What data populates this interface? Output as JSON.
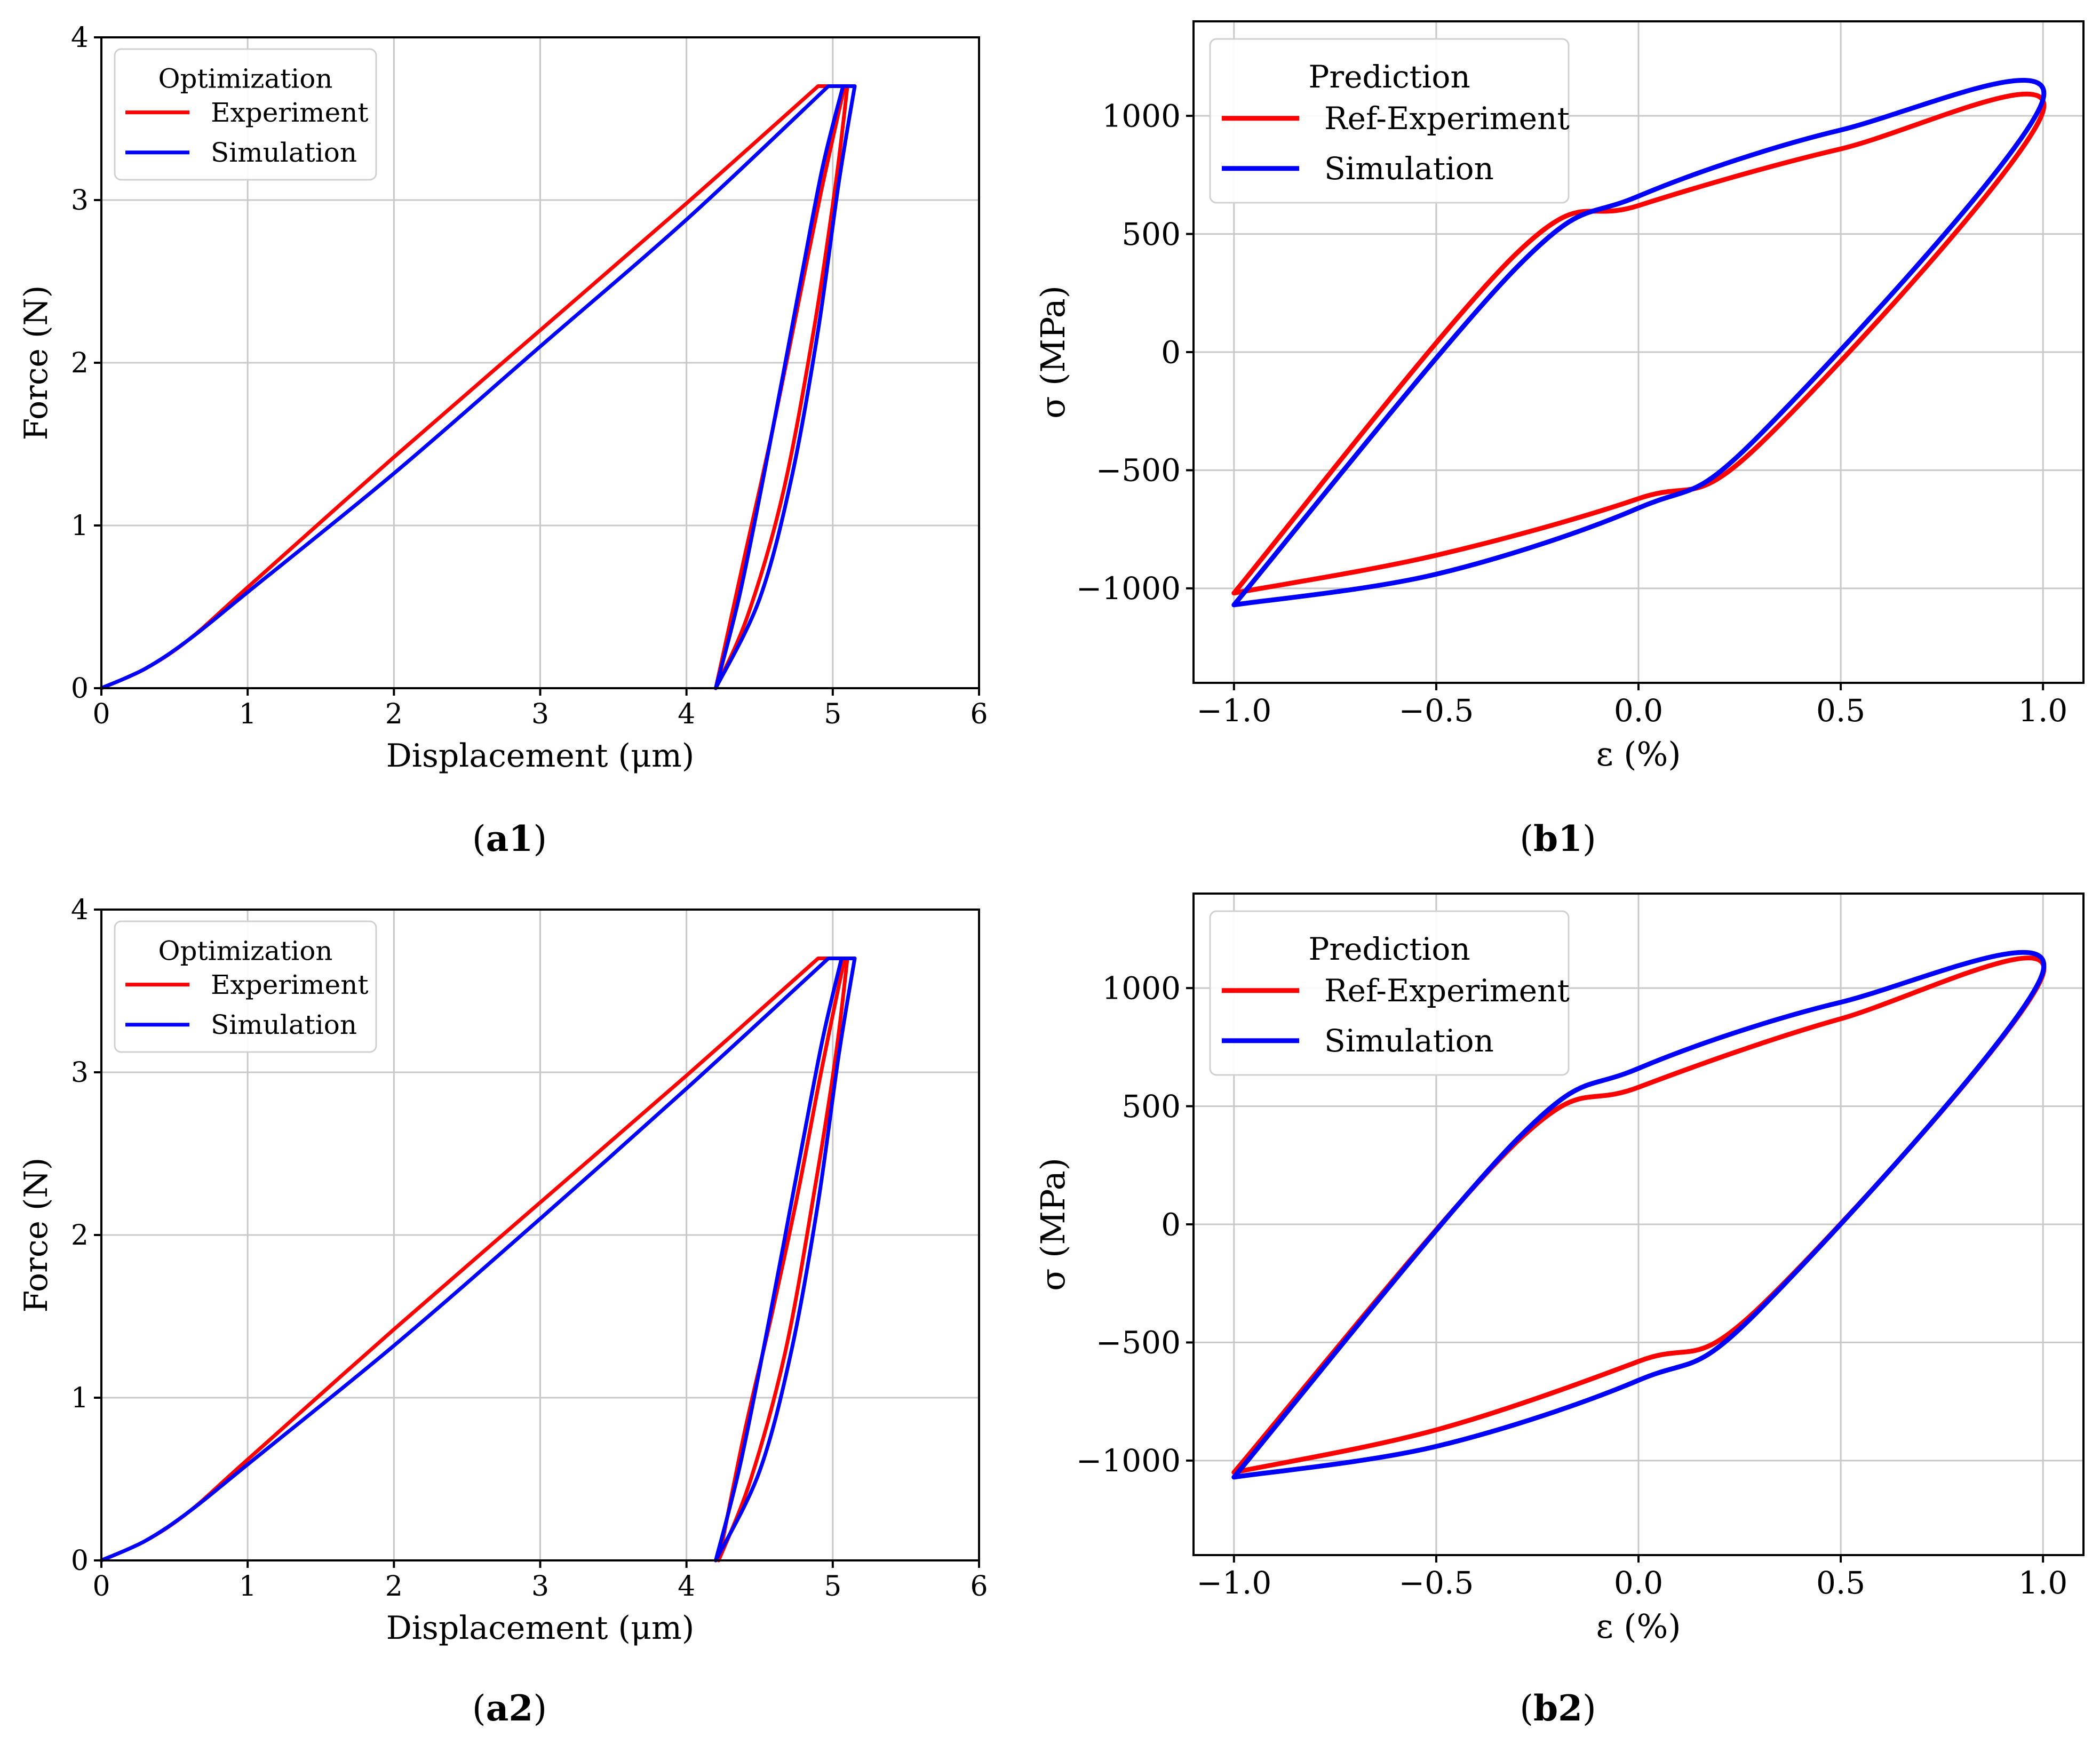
{
  "chart_data": [
    {
      "id": "a1",
      "type": "line",
      "caption_prefix": "(",
      "caption_bold": "a1",
      "caption_suffix": ")",
      "xlabel": "Displacement (μm)",
      "ylabel": "Force  (N)",
      "xlim": [
        0,
        6
      ],
      "ylim": [
        0,
        4
      ],
      "xticks": [
        0,
        1,
        2,
        3,
        4,
        5,
        6
      ],
      "yticks": [
        0,
        1,
        2,
        3,
        4
      ],
      "xtick_labels": [
        "0",
        "1",
        "2",
        "3",
        "4",
        "5",
        "6"
      ],
      "ytick_labels": [
        "0",
        "1",
        "2",
        "3",
        "4"
      ],
      "grid": true,
      "legend": {
        "title": "Optimization",
        "position": "top-left",
        "entries": [
          "Experiment",
          "Simulation"
        ]
      },
      "series": [
        {
          "name": "Experiment",
          "color": "#ff0000",
          "curves": [
            [
              [
                0,
                0
              ],
              [
                0.3,
                0.12
              ],
              [
                0.6,
                0.3
              ],
              [
                1.0,
                0.62
              ],
              [
                2.0,
                1.42
              ],
              [
                3.0,
                2.2
              ],
              [
                4.0,
                2.98
              ],
              [
                4.9,
                3.7
              ],
              [
                5.08,
                3.7
              ]
            ],
            [
              [
                5.08,
                3.7
              ],
              [
                4.92,
                3.05
              ],
              [
                4.75,
                2.3
              ],
              [
                4.58,
                1.55
              ],
              [
                4.4,
                0.82
              ],
              [
                4.2,
                0
              ]
            ],
            [
              [
                4.2,
                0
              ],
              [
                4.42,
                0.45
              ],
              [
                4.66,
                1.2
              ],
              [
                4.87,
                2.2
              ],
              [
                5.02,
                3.1
              ],
              [
                5.1,
                3.7
              ]
            ]
          ]
        },
        {
          "name": "Simulation",
          "color": "#0000ff",
          "curves": [
            [
              [
                0,
                0
              ],
              [
                0.3,
                0.12
              ],
              [
                0.6,
                0.3
              ],
              [
                1.0,
                0.59
              ],
              [
                2.0,
                1.32
              ],
              [
                3.0,
                2.1
              ],
              [
                4.0,
                2.88
              ],
              [
                4.97,
                3.7
              ],
              [
                5.15,
                3.7
              ]
            ],
            [
              [
                5.15,
                3.7
              ],
              [
                5.04,
                3.1
              ],
              [
                4.9,
                2.2
              ],
              [
                4.72,
                1.3
              ],
              [
                4.5,
                0.55
              ],
              [
                4.2,
                0
              ]
            ],
            [
              [
                4.2,
                0
              ],
              [
                4.37,
                0.6
              ],
              [
                4.57,
                1.5
              ],
              [
                4.78,
                2.5
              ],
              [
                4.93,
                3.2
              ],
              [
                5.07,
                3.7
              ]
            ]
          ]
        }
      ]
    },
    {
      "id": "b1",
      "type": "line",
      "caption_prefix": "(",
      "caption_bold": "b1",
      "caption_suffix": ")",
      "xlabel": "ε (%)",
      "ylabel": "σ (MPa)",
      "xlim": [
        -1.1,
        1.1
      ],
      "ylim": [
        -1400,
        1400
      ],
      "xticks": [
        -1.0,
        -0.5,
        0.0,
        0.5,
        1.0
      ],
      "yticks": [
        -1000,
        -500,
        0,
        500,
        1000
      ],
      "xtick_labels": [
        "−1.0",
        "−0.5",
        "0.0",
        "0.5",
        "1.0"
      ],
      "ytick_labels": [
        "−1000",
        "−500",
        "0",
        "500",
        "1000"
      ],
      "grid": true,
      "legend": {
        "title": "Prediction",
        "position": "top-left",
        "entries": [
          "Ref-Experiment",
          "Simulation"
        ]
      },
      "series": [
        {
          "name": "Ref-Experiment",
          "color": "#ff0000",
          "curves": [
            [
              [
                -1.0,
                -1020
              ],
              [
                -0.3,
                420
              ],
              [
                0.0,
                620
              ],
              [
                0.5,
                860
              ],
              [
                1.0,
                1020
              ],
              [
                0.3,
                -390
              ],
              [
                0.0,
                -620
              ],
              [
                -0.5,
                -860
              ],
              [
                -1.0,
                -1020
              ]
            ]
          ]
        },
        {
          "name": "Simulation",
          "color": "#0000ff",
          "curves": [
            [
              [
                -1.0,
                -1070
              ],
              [
                -0.3,
                360
              ],
              [
                0.0,
                660
              ],
              [
                0.5,
                940
              ],
              [
                1.0,
                1070
              ],
              [
                0.3,
                -350
              ],
              [
                0.0,
                -660
              ],
              [
                -0.5,
                -940
              ],
              [
                -1.0,
                -1070
              ]
            ]
          ]
        }
      ]
    },
    {
      "id": "a2",
      "type": "line",
      "caption_prefix": "(",
      "caption_bold": "a2",
      "caption_suffix": ")",
      "xlabel": "Displacement (μm)",
      "ylabel": "Force  (N)",
      "xlim": [
        0,
        6
      ],
      "ylim": [
        0,
        4
      ],
      "xticks": [
        0,
        1,
        2,
        3,
        4,
        5,
        6
      ],
      "yticks": [
        0,
        1,
        2,
        3,
        4
      ],
      "xtick_labels": [
        "0",
        "1",
        "2",
        "3",
        "4",
        "5",
        "6"
      ],
      "ytick_labels": [
        "0",
        "1",
        "2",
        "3",
        "4"
      ],
      "grid": true,
      "legend": {
        "title": "Optimization",
        "position": "top-left",
        "entries": [
          "Experiment",
          "Simulation"
        ]
      },
      "series": [
        {
          "name": "Experiment",
          "color": "#ff0000",
          "curves": [
            [
              [
                0,
                0
              ],
              [
                0.3,
                0.12
              ],
              [
                0.6,
                0.3
              ],
              [
                1.0,
                0.62
              ],
              [
                2.0,
                1.42
              ],
              [
                3.0,
                2.2
              ],
              [
                4.0,
                2.98
              ],
              [
                4.9,
                3.7
              ],
              [
                5.08,
                3.7
              ]
            ],
            [
              [
                5.08,
                3.7
              ],
              [
                4.92,
                3.0
              ],
              [
                4.76,
                2.25
              ],
              [
                4.58,
                1.5
              ],
              [
                4.4,
                0.8
              ],
              [
                4.22,
                0
              ]
            ],
            [
              [
                4.22,
                0
              ],
              [
                4.44,
                0.5
              ],
              [
                4.68,
                1.3
              ],
              [
                4.88,
                2.3
              ],
              [
                5.02,
                3.1
              ],
              [
                5.1,
                3.7
              ]
            ]
          ]
        },
        {
          "name": "Simulation",
          "color": "#0000ff",
          "curves": [
            [
              [
                0,
                0
              ],
              [
                0.3,
                0.12
              ],
              [
                0.6,
                0.3
              ],
              [
                1.0,
                0.59
              ],
              [
                2.0,
                1.32
              ],
              [
                3.0,
                2.1
              ],
              [
                4.0,
                2.9
              ],
              [
                4.97,
                3.7
              ],
              [
                5.15,
                3.7
              ]
            ],
            [
              [
                5.15,
                3.7
              ],
              [
                5.04,
                3.1
              ],
              [
                4.9,
                2.2
              ],
              [
                4.72,
                1.3
              ],
              [
                4.5,
                0.55
              ],
              [
                4.2,
                0
              ]
            ],
            [
              [
                4.2,
                0
              ],
              [
                4.37,
                0.6
              ],
              [
                4.57,
                1.5
              ],
              [
                4.78,
                2.5
              ],
              [
                4.93,
                3.2
              ],
              [
                5.06,
                3.7
              ]
            ]
          ]
        }
      ]
    },
    {
      "id": "b2",
      "type": "line",
      "caption_prefix": "(",
      "caption_bold": "b2",
      "caption_suffix": ")",
      "xlabel": "ε (%)",
      "ylabel": "σ (MPa)",
      "xlim": [
        -1.1,
        1.1
      ],
      "ylim": [
        -1400,
        1400
      ],
      "xticks": [
        -1.0,
        -0.5,
        0.0,
        0.5,
        1.0
      ],
      "yticks": [
        -1000,
        -500,
        0,
        500,
        1000
      ],
      "xtick_labels": [
        "−1.0",
        "−0.5",
        "0.0",
        "0.5",
        "1.0"
      ],
      "ytick_labels": [
        "−1000",
        "−500",
        "0",
        "500",
        "1000"
      ],
      "grid": true,
      "legend": {
        "title": "Prediction",
        "position": "top-left",
        "entries": [
          "Ref-Experiment",
          "Simulation"
        ]
      },
      "series": [
        {
          "name": "Ref-Experiment",
          "color": "#ff0000",
          "curves": [
            [
              [
                -1.0,
                -1050
              ],
              [
                -0.3,
                350
              ],
              [
                0.0,
                580
              ],
              [
                0.5,
                870
              ],
              [
                1.0,
                1060
              ],
              [
                0.3,
                -350
              ],
              [
                0.0,
                -580
              ],
              [
                -0.5,
                -870
              ],
              [
                -1.0,
                -1050
              ]
            ]
          ]
        },
        {
          "name": "Simulation",
          "color": "#0000ff",
          "curves": [
            [
              [
                -1.0,
                -1070
              ],
              [
                -0.3,
                360
              ],
              [
                0.0,
                660
              ],
              [
                0.5,
                940
              ],
              [
                1.0,
                1070
              ],
              [
                0.3,
                -360
              ],
              [
                0.0,
                -660
              ],
              [
                -0.5,
                -940
              ],
              [
                -1.0,
                -1070
              ]
            ]
          ]
        }
      ]
    }
  ]
}
